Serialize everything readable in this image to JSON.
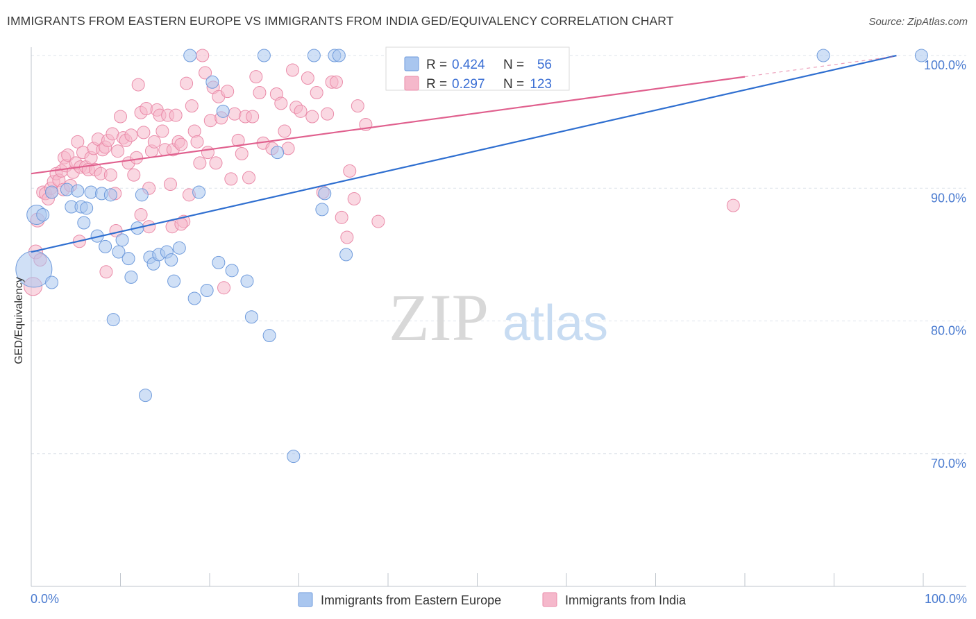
{
  "title": "IMMIGRANTS FROM EASTERN EUROPE VS IMMIGRANTS FROM INDIA GED/EQUIVALENCY CORRELATION CHART",
  "source": "Source: ZipAtlas.com",
  "watermark": {
    "zip": "ZIP",
    "atlas": "atlas"
  },
  "colors": {
    "blue_fill": "#a9c6ef",
    "blue_stroke": "#6f9bdc",
    "blue_line": "#2f6fd0",
    "pink_fill": "#f5b8cb",
    "pink_stroke": "#ea8ba9",
    "pink_line": "#e0608e",
    "grid": "#dde3ea",
    "tick_text": "#4a7bd0"
  },
  "legend": {
    "rows": [
      {
        "r_label": "R =",
        "r_value": "0.424",
        "n_label": "N =",
        "n_value": "56",
        "series": "blue"
      },
      {
        "r_label": "R =",
        "r_value": "0.297",
        "n_label": "N =",
        "n_value": "123",
        "series": "pink"
      }
    ]
  },
  "chart_data": {
    "type": "scatter",
    "title": "IMMIGRANTS FROM EASTERN EUROPE VS IMMIGRANTS FROM INDIA GED/EQUIVALENCY CORRELATION CHART",
    "xlabel": "",
    "ylabel": "GED/Equivalency",
    "xlim": [
      0,
      100
    ],
    "ylim": [
      60,
      100
    ],
    "x_tick_labels": [
      "0.0%",
      "100.0%"
    ],
    "y_ticks": [
      70,
      80,
      90,
      100
    ],
    "y_tick_labels": [
      "70.0%",
      "80.0%",
      "90.0%",
      "100.0%"
    ],
    "grid": true,
    "legend_position": "top-center",
    "series": [
      {
        "name": "Immigrants from Eastern Europe",
        "color": "blue",
        "trend": {
          "x": [
            0,
            97
          ],
          "y": [
            85.2,
            100.0
          ]
        },
        "points": [
          [
            0.3,
            83.9,
            26
          ],
          [
            0.6,
            88.0,
            14
          ],
          [
            1.3,
            88.0,
            9
          ],
          [
            2.3,
            82.9,
            9
          ],
          [
            2.3,
            89.7,
            9
          ],
          [
            4.0,
            89.9,
            9
          ],
          [
            4.5,
            88.6,
            9
          ],
          [
            5.2,
            89.8,
            9
          ],
          [
            5.6,
            88.6,
            9
          ],
          [
            5.9,
            87.4,
            9
          ],
          [
            6.2,
            88.5,
            9
          ],
          [
            6.7,
            89.7,
            9
          ],
          [
            7.4,
            86.4,
            9
          ],
          [
            7.9,
            89.6,
            9
          ],
          [
            8.3,
            85.6,
            9
          ],
          [
            8.9,
            89.5,
            9
          ],
          [
            9.2,
            80.1,
            9
          ],
          [
            9.8,
            85.2,
            9
          ],
          [
            10.2,
            86.1,
            9
          ],
          [
            10.9,
            84.7,
            9
          ],
          [
            11.2,
            83.3,
            9
          ],
          [
            11.9,
            87.0,
            9
          ],
          [
            12.4,
            89.5,
            9
          ],
          [
            12.8,
            74.4,
            9
          ],
          [
            13.3,
            84.8,
            9
          ],
          [
            13.7,
            84.3,
            9
          ],
          [
            14.3,
            85.0,
            9
          ],
          [
            15.2,
            85.2,
            9
          ],
          [
            15.7,
            84.6,
            9
          ],
          [
            16.0,
            83.0,
            9
          ],
          [
            16.6,
            85.5,
            9
          ],
          [
            17.8,
            100.0,
            9
          ],
          [
            18.3,
            81.7,
            9
          ],
          [
            18.8,
            89.7,
            9
          ],
          [
            19.7,
            82.3,
            9
          ],
          [
            20.3,
            98.0,
            9
          ],
          [
            21.0,
            84.4,
            9
          ],
          [
            21.5,
            95.8,
            9
          ],
          [
            22.5,
            83.8,
            9
          ],
          [
            24.2,
            83.0,
            9
          ],
          [
            24.7,
            80.3,
            9
          ],
          [
            26.1,
            100.0,
            9
          ],
          [
            26.7,
            78.9,
            9
          ],
          [
            27.6,
            92.7,
            9
          ],
          [
            29.4,
            69.8,
            9
          ],
          [
            31.7,
            100.0,
            9
          ],
          [
            32.6,
            88.4,
            9
          ],
          [
            32.9,
            89.6,
            9
          ],
          [
            34.0,
            100.0,
            9
          ],
          [
            34.5,
            100.0,
            9
          ],
          [
            35.3,
            85.0,
            9
          ],
          [
            88.8,
            100.0,
            9
          ],
          [
            99.8,
            100.0,
            9
          ]
        ]
      },
      {
        "name": "Immigrants from India",
        "color": "pink",
        "trend": {
          "x": [
            0,
            80
          ],
          "y": [
            91.1,
            98.4
          ]
        },
        "points": [
          [
            0.2,
            82.6,
            13
          ],
          [
            0.5,
            85.2,
            10
          ],
          [
            0.7,
            87.6,
            10
          ],
          [
            1.0,
            84.6,
            9
          ],
          [
            1.3,
            89.7,
            9
          ],
          [
            1.6,
            89.6,
            9
          ],
          [
            1.9,
            89.2,
            9
          ],
          [
            2.2,
            90.0,
            9
          ],
          [
            2.3,
            89.7,
            9
          ],
          [
            2.5,
            90.5,
            9
          ],
          [
            2.8,
            91.1,
            9
          ],
          [
            3.1,
            90.6,
            9
          ],
          [
            3.4,
            91.3,
            9
          ],
          [
            3.6,
            89.9,
            9
          ],
          [
            3.7,
            92.3,
            9
          ],
          [
            3.9,
            91.7,
            9
          ],
          [
            4.1,
            92.5,
            9
          ],
          [
            4.4,
            90.2,
            9
          ],
          [
            4.7,
            91.2,
            9
          ],
          [
            5.0,
            91.9,
            9
          ],
          [
            5.2,
            93.5,
            9
          ],
          [
            5.5,
            91.6,
            9
          ],
          [
            5.8,
            92.7,
            9
          ],
          [
            6.1,
            91.6,
            9
          ],
          [
            6.4,
            91.4,
            9
          ],
          [
            6.7,
            92.3,
            9
          ],
          [
            7.0,
            93.0,
            9
          ],
          [
            7.2,
            91.4,
            9
          ],
          [
            7.5,
            93.7,
            9
          ],
          [
            7.8,
            91.1,
            9
          ],
          [
            8.0,
            92.9,
            9
          ],
          [
            8.3,
            93.1,
            9
          ],
          [
            8.6,
            93.6,
            9
          ],
          [
            8.9,
            91.0,
            9
          ],
          [
            9.1,
            94.1,
            9
          ],
          [
            9.4,
            89.6,
            9
          ],
          [
            9.7,
            92.8,
            9
          ],
          [
            10.0,
            95.4,
            9
          ],
          [
            10.3,
            93.8,
            9
          ],
          [
            10.6,
            93.6,
            9
          ],
          [
            10.9,
            91.9,
            9
          ],
          [
            11.2,
            94.0,
            9
          ],
          [
            11.5,
            91.0,
            9
          ],
          [
            11.8,
            92.3,
            9
          ],
          [
            12.0,
            97.8,
            9
          ],
          [
            12.3,
            95.7,
            9
          ],
          [
            12.6,
            94.2,
            9
          ],
          [
            12.9,
            96.0,
            9
          ],
          [
            13.2,
            90.0,
            9
          ],
          [
            13.5,
            92.8,
            9
          ],
          [
            13.8,
            93.5,
            9
          ],
          [
            14.1,
            95.9,
            9
          ],
          [
            14.4,
            95.5,
            9
          ],
          [
            14.7,
            94.3,
            9
          ],
          [
            15.0,
            92.9,
            9
          ],
          [
            15.3,
            95.5,
            9
          ],
          [
            15.6,
            90.3,
            9
          ],
          [
            15.9,
            92.9,
            9
          ],
          [
            16.2,
            95.5,
            9
          ],
          [
            16.5,
            93.5,
            9
          ],
          [
            16.8,
            93.3,
            9
          ],
          [
            17.1,
            87.5,
            9
          ],
          [
            17.4,
            97.9,
            9
          ],
          [
            17.7,
            89.5,
            9
          ],
          [
            18.0,
            96.2,
            9
          ],
          [
            18.3,
            94.3,
            9
          ],
          [
            18.6,
            93.5,
            9
          ],
          [
            18.9,
            91.9,
            9
          ],
          [
            19.2,
            100.0,
            9
          ],
          [
            19.5,
            98.7,
            9
          ],
          [
            19.8,
            92.7,
            9
          ],
          [
            20.1,
            95.1,
            9
          ],
          [
            20.4,
            97.6,
            9
          ],
          [
            20.7,
            91.9,
            9
          ],
          [
            21.0,
            96.9,
            9
          ],
          [
            21.3,
            95.3,
            9
          ],
          [
            21.6,
            82.5,
            9
          ],
          [
            22.0,
            97.3,
            9
          ],
          [
            22.4,
            90.7,
            9
          ],
          [
            22.8,
            95.6,
            9
          ],
          [
            23.2,
            93.6,
            9
          ],
          [
            23.6,
            92.6,
            9
          ],
          [
            24.0,
            95.4,
            9
          ],
          [
            24.4,
            90.8,
            9
          ],
          [
            24.8,
            95.4,
            9
          ],
          [
            25.2,
            98.4,
            9
          ],
          [
            25.6,
            97.2,
            9
          ],
          [
            26.0,
            93.4,
            9
          ],
          [
            27.0,
            93.0,
            9
          ],
          [
            27.5,
            97.1,
            9
          ],
          [
            28.0,
            96.4,
            9
          ],
          [
            28.4,
            94.3,
            9
          ],
          [
            28.8,
            93.0,
            9
          ],
          [
            29.3,
            98.9,
            9
          ],
          [
            29.7,
            96.1,
            9
          ],
          [
            30.2,
            95.8,
            9
          ],
          [
            31.0,
            98.3,
            9
          ],
          [
            31.5,
            95.4,
            9
          ],
          [
            32.0,
            97.2,
            9
          ],
          [
            32.7,
            89.7,
            9
          ],
          [
            33.2,
            95.6,
            9
          ],
          [
            33.7,
            98.0,
            9
          ],
          [
            34.2,
            98.0,
            9
          ],
          [
            34.8,
            87.8,
            9
          ],
          [
            35.4,
            86.3,
            9
          ],
          [
            35.7,
            91.3,
            9
          ],
          [
            36.2,
            89.2,
            9
          ],
          [
            36.6,
            96.2,
            9
          ],
          [
            37.5,
            94.8,
            9
          ],
          [
            38.9,
            87.5,
            9
          ],
          [
            78.7,
            88.7,
            9
          ],
          [
            8.4,
            83.7,
            9
          ],
          [
            9.5,
            86.8,
            9
          ],
          [
            12.3,
            88.0,
            9
          ],
          [
            13.2,
            87.1,
            9
          ],
          [
            15.8,
            87.1,
            9
          ],
          [
            16.8,
            87.3,
            9
          ],
          [
            5.4,
            86.0,
            9
          ]
        ]
      }
    ]
  }
}
